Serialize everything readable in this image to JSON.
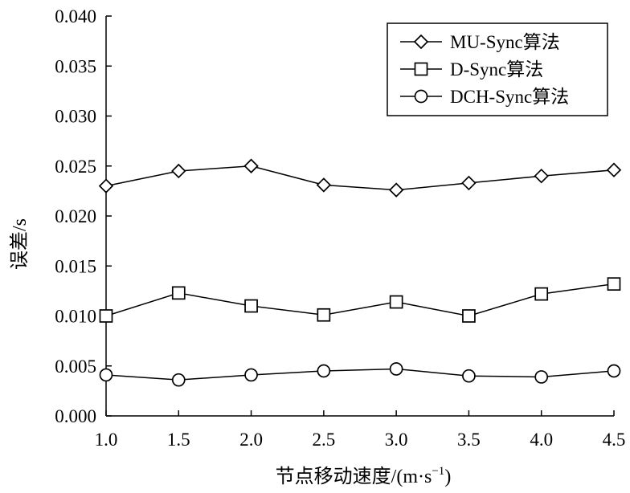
{
  "chart_data": {
    "type": "line",
    "x": [
      1.0,
      1.5,
      2.0,
      2.5,
      3.0,
      3.5,
      4.0,
      4.5
    ],
    "x_tick_labels": [
      "1.0",
      "1.5",
      "2.0",
      "2.5",
      "3.0",
      "3.5",
      "4.0",
      "4.5"
    ],
    "y_tick_values": [
      0.0,
      0.005,
      0.01,
      0.015,
      0.02,
      0.025,
      0.03,
      0.035,
      0.04
    ],
    "y_tick_labels": [
      "0.000",
      "0.005",
      "0.010",
      "0.015",
      "0.020",
      "0.025",
      "0.030",
      "0.035",
      "0.040"
    ],
    "xlim": [
      1.0,
      4.5
    ],
    "ylim": [
      0.0,
      0.04
    ],
    "xlabel": "节点移动速度/(m·s",
    "xlabel_sup": "−1",
    "xlabel_end": ")",
    "ylabel": "误差/s",
    "legend_position": "top-right",
    "series": [
      {
        "name": "MU-Sync算法",
        "marker": "diamond",
        "values": [
          0.023,
          0.0245,
          0.025,
          0.0231,
          0.0226,
          0.0233,
          0.024,
          0.0246
        ]
      },
      {
        "name": "D-Sync算法",
        "marker": "square",
        "values": [
          0.01,
          0.0123,
          0.011,
          0.0101,
          0.0114,
          0.01,
          0.0122,
          0.0132
        ]
      },
      {
        "name": "DCH-Sync算法",
        "marker": "circle",
        "values": [
          0.0041,
          0.0036,
          0.0041,
          0.0045,
          0.0047,
          0.004,
          0.0039,
          0.0045
        ]
      }
    ]
  }
}
